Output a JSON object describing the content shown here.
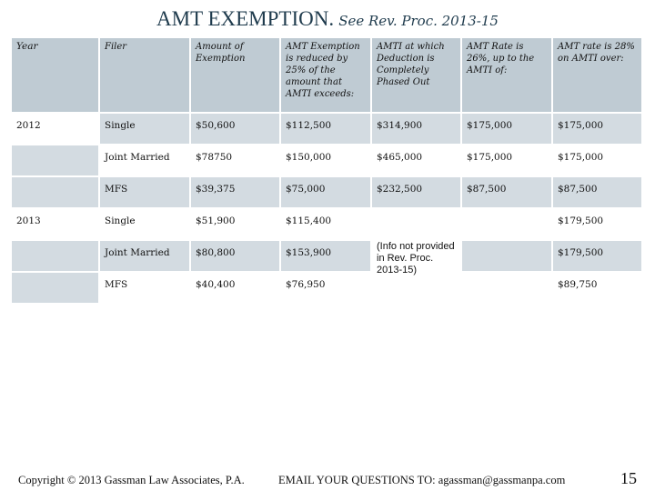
{
  "title": {
    "main": "AMT EXEMPTION.",
    "sub": "See Rev. Proc. 2013-15"
  },
  "table": {
    "headers": [
      "Year",
      "Filer",
      "Amount of Exemption",
      "AMT Exemption is reduced by 25% of the amount that AMTI exceeds:",
      "AMTI at which Deduction is Completely Phased Out",
      "AMT Rate is 26%, up to the AMTI of:",
      "AMT rate is 28% on AMTI over:"
    ],
    "rows": [
      {
        "year": "2012",
        "filer": "Single",
        "exemption": "$50,600",
        "reduced": "$112,500",
        "phaseout": "$314,900",
        "rate26": "$175,000",
        "rate28": "$175,000"
      },
      {
        "year": "",
        "filer": "Joint Married",
        "exemption": "$78750",
        "reduced": "$150,000",
        "phaseout": "$465,000",
        "rate26": "$175,000",
        "rate28": "$175,000"
      },
      {
        "year": "",
        "filer": "MFS",
        "exemption": "$39,375",
        "reduced": "$75,000",
        "phaseout": "$232,500",
        "rate26": "$87,500",
        "rate28": "$87,500"
      },
      {
        "year": "2013",
        "filer": "Single",
        "exemption": "$51,900",
        "reduced": "$115,400",
        "phaseout": "",
        "rate26": "",
        "rate28": "$179,500"
      },
      {
        "year": "",
        "filer": "Joint Married",
        "exemption": "$80,800",
        "reduced": "$153,900",
        "phaseout": "",
        "rate26": "",
        "rate28": "$179,500"
      },
      {
        "year": "",
        "filer": "MFS",
        "exemption": "$40,400",
        "reduced": "$76,950",
        "phaseout": "",
        "rate26": "",
        "rate28": "$89,750"
      }
    ],
    "note_2013": "(Info not provided in Rev. Proc. 2013-15)"
  },
  "footer": {
    "copyright": "Copyright © 2013 Gassman Law Associates, P.A.",
    "email": "EMAIL YOUR QUESTIONS TO: agassman@gassmanpa.com",
    "page_number": "15"
  },
  "colors": {
    "header_bg": "#bfcbd3",
    "row_shade": "#d3dbe1",
    "title": "#1f3b4d"
  }
}
